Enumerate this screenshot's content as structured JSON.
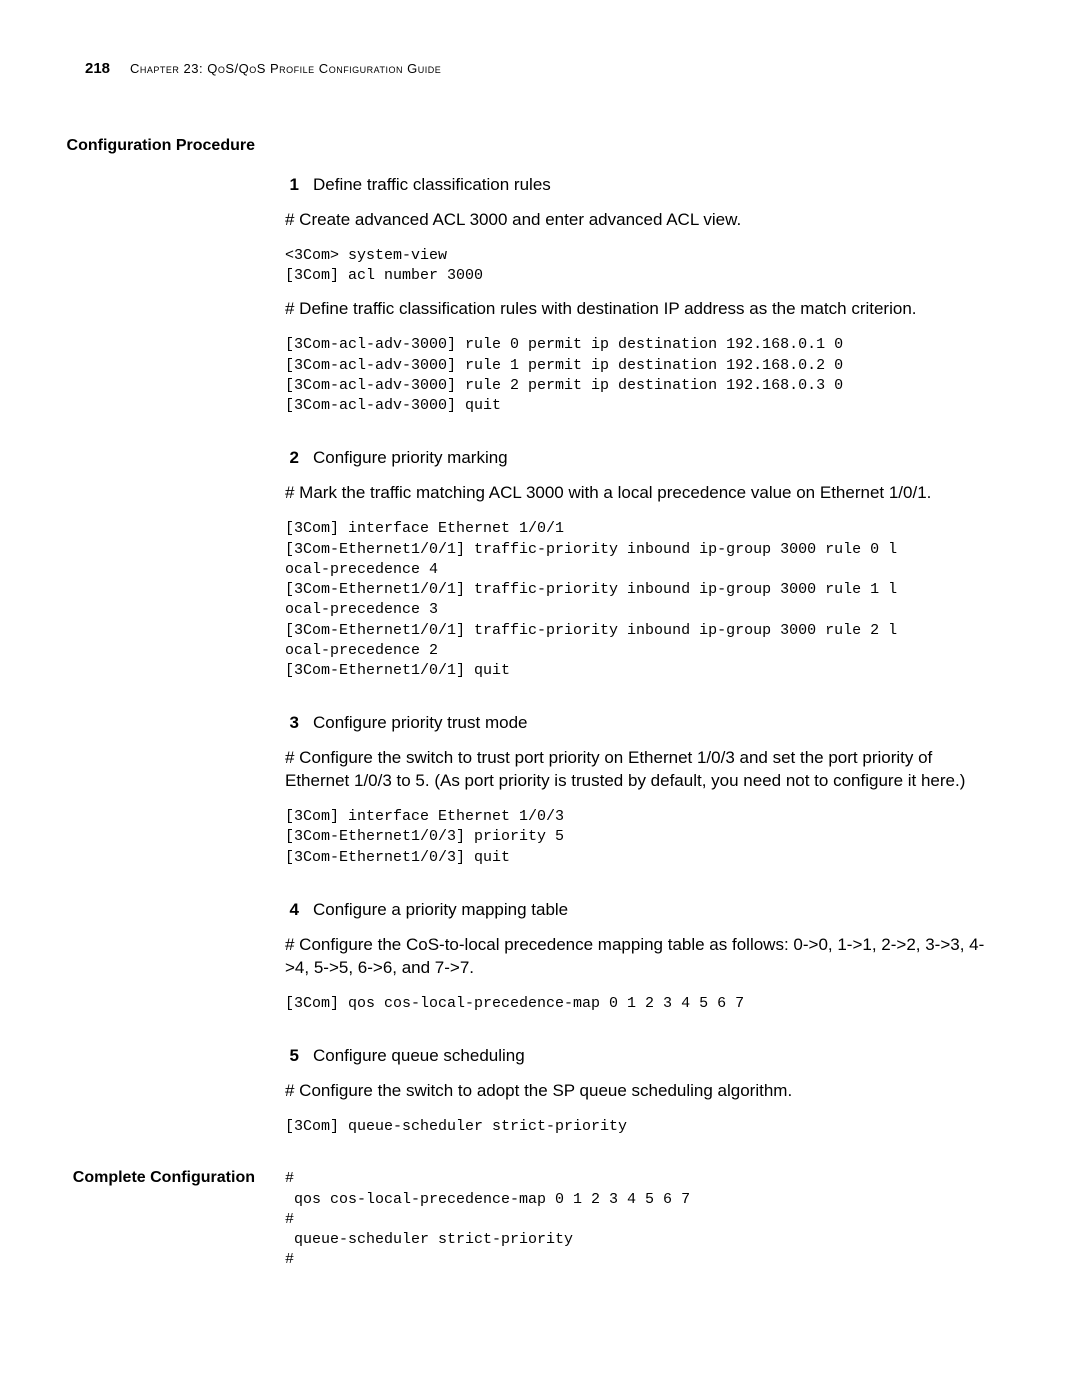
{
  "header": {
    "page_number": "218",
    "chapter_title": "Chapter 23: QoS/QoS Profile Configuration Guide"
  },
  "section1": {
    "label": "Configuration Procedure",
    "steps": {
      "s1": {
        "num": "1",
        "title": "Define traffic classification rules",
        "p1": "# Create advanced ACL 3000 and enter advanced ACL view.",
        "code1": "<3Com> system-view\n[3Com] acl number 3000",
        "p2": "# Define traffic classification rules with destination IP address as the match criterion.",
        "code2": "[3Com-acl-adv-3000] rule 0 permit ip destination 192.168.0.1 0\n[3Com-acl-adv-3000] rule 1 permit ip destination 192.168.0.2 0\n[3Com-acl-adv-3000] rule 2 permit ip destination 192.168.0.3 0\n[3Com-acl-adv-3000] quit"
      },
      "s2": {
        "num": "2",
        "title": "Configure priority marking",
        "p1": "# Mark the traffic matching ACL 3000 with a local precedence value on Ethernet 1/0/1.",
        "code1": "[3Com] interface Ethernet 1/0/1\n[3Com-Ethernet1/0/1] traffic-priority inbound ip-group 3000 rule 0 l\nocal-precedence 4\n[3Com-Ethernet1/0/1] traffic-priority inbound ip-group 3000 rule 1 l\nocal-precedence 3\n[3Com-Ethernet1/0/1] traffic-priority inbound ip-group 3000 rule 2 l\nocal-precedence 2\n[3Com-Ethernet1/0/1] quit"
      },
      "s3": {
        "num": "3",
        "title": "Configure priority trust mode",
        "p1": "# Configure the switch to trust port priority on Ethernet 1/0/3 and set the port priority of Ethernet 1/0/3 to 5. (As port priority is trusted by default, you need not to configure it here.)",
        "code1": "[3Com] interface Ethernet 1/0/3\n[3Com-Ethernet1/0/3] priority 5\n[3Com-Ethernet1/0/3] quit"
      },
      "s4": {
        "num": "4",
        "title": "Configure a priority mapping table",
        "p1": "# Configure the CoS-to-local precedence mapping table as follows: 0->0, 1->1, 2->2, 3->3, 4->4, 5->5, 6->6, and 7->7.",
        "code1": "[3Com] qos cos-local-precedence-map 0 1 2 3 4 5 6 7"
      },
      "s5": {
        "num": "5",
        "title": "Configure queue scheduling",
        "p1": "# Configure the switch to adopt the SP queue scheduling algorithm.",
        "code1": "[3Com] queue-scheduler strict-priority"
      }
    }
  },
  "section2": {
    "label": "Complete Configuration",
    "code": "#\n qos cos-local-precedence-map 0 1 2 3 4 5 6 7\n#\n queue-scheduler strict-priority\n#"
  }
}
